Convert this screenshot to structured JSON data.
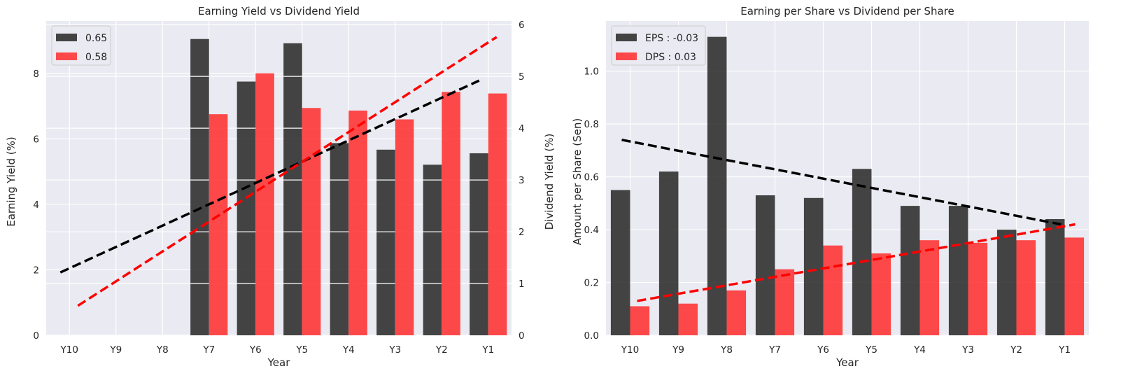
{
  "chart_data": [
    {
      "type": "bar",
      "title": "Earning Yield vs Dividend Yield",
      "xlabel": "Year",
      "ylabel": "Earning Yield (%)",
      "y2label": "Dividend Yield (%)",
      "categories": [
        "Y10",
        "Y9",
        "Y8",
        "Y7",
        "Y6",
        "Y5",
        "Y4",
        "Y3",
        "Y2",
        "Y1"
      ],
      "ylim": [
        0,
        9.6
      ],
      "yticks": [
        0,
        2,
        4,
        6,
        8
      ],
      "y2lim": [
        0,
        6.07
      ],
      "y2ticks": [
        0,
        1,
        2,
        3,
        4,
        5,
        6
      ],
      "series": [
        {
          "name": "0.65",
          "axis": "left",
          "color": "#262626",
          "values": [
            0,
            0,
            0,
            9.05,
            7.75,
            8.92,
            5.87,
            5.67,
            5.21,
            5.56
          ],
          "trend": [
            1.92,
            7.78
          ]
        },
        {
          "name": "0.58",
          "axis": "right",
          "color": "#ff2b2b",
          "values": [
            0,
            0,
            0,
            4.27,
            5.06,
            4.39,
            4.34,
            4.17,
            4.7,
            4.67
          ],
          "trend": [
            0.57,
            5.76
          ]
        }
      ],
      "legend": "top-left",
      "grid": true
    },
    {
      "type": "bar",
      "title": "Earning per Share vs Dividend per Share",
      "xlabel": "Year",
      "ylabel": "Amount per Share (Sen)",
      "categories": [
        "Y10",
        "Y9",
        "Y8",
        "Y7",
        "Y6",
        "Y5",
        "Y4",
        "Y3",
        "Y2",
        "Y1"
      ],
      "ylim": [
        0,
        1.19
      ],
      "yticks": [
        0.0,
        0.2,
        0.4,
        0.6,
        0.8,
        1.0
      ],
      "series": [
        {
          "name": "EPS : -0.03",
          "color": "#262626",
          "values": [
            0.55,
            0.62,
            1.13,
            0.53,
            0.52,
            0.63,
            0.49,
            0.49,
            0.4,
            0.44
          ],
          "trend": [
            0.74,
            0.42
          ]
        },
        {
          "name": "DPS : 0.03",
          "color": "#ff2b2b",
          "values": [
            0.11,
            0.12,
            0.17,
            0.25,
            0.34,
            0.31,
            0.36,
            0.35,
            0.36,
            0.37
          ],
          "trend": [
            0.13,
            0.42
          ]
        }
      ],
      "legend": "top-left",
      "grid": true
    }
  ]
}
